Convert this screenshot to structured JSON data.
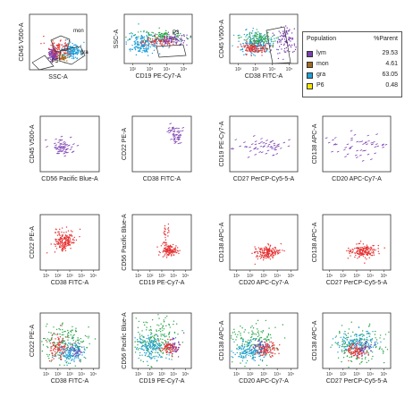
{
  "colors": {
    "lym": "#7a3fb0",
    "mon": "#a36b1f",
    "gra": "#1e9fd8",
    "P6": "#f2e600",
    "red": "#e63232",
    "green": "#2aa84a",
    "axis": "#333333",
    "gate": "#333333"
  },
  "legend": {
    "header_population": "Population",
    "header_parent": "%Parent",
    "rows": [
      {
        "name": "lym",
        "value": "29.53",
        "color": "#7a3fb0"
      },
      {
        "name": "mon",
        "value": "4.61",
        "color": "#a36b1f"
      },
      {
        "name": "gra",
        "value": "63.05",
        "color": "#1e9fd8"
      },
      {
        "name": "P6",
        "value": "0.48",
        "color": "#f2e600"
      }
    ]
  },
  "gate_labels": {
    "mon": "mon",
    "gra": "gra",
    "p5": "P5",
    "p3": "P3"
  },
  "chart_data": [
    {
      "type": "scatter",
      "id": "p1",
      "xlabel": "SSC-A",
      "ylabel": "CD45 V500-A",
      "xticks": [],
      "yticks": [],
      "populations": [
        {
          "color": "lym",
          "cx": 0.42,
          "cy": 0.72,
          "sx": 0.04,
          "sy": 0.06,
          "n": 140
        },
        {
          "color": "mon",
          "cx": 0.58,
          "cy": 0.78,
          "sx": 0.05,
          "sy": 0.04,
          "n": 60
        },
        {
          "color": "gra",
          "cx": 0.75,
          "cy": 0.66,
          "sx": 0.09,
          "sy": 0.06,
          "n": 160
        },
        {
          "color": "red",
          "cx": 0.52,
          "cy": 0.6,
          "sx": 0.12,
          "sy": 0.08,
          "n": 90
        }
      ]
    },
    {
      "type": "scatter",
      "id": "p2",
      "xlabel": "CD19 PE-Cy7-A",
      "ylabel": "SSC-A",
      "xticks": [
        "10²",
        "10³",
        "10⁴",
        "10⁵"
      ],
      "yticks": [],
      "populations": [
        {
          "color": "gra",
          "cx": 0.28,
          "cy": 0.6,
          "sx": 0.12,
          "sy": 0.1,
          "n": 200
        },
        {
          "color": "green",
          "cx": 0.55,
          "cy": 0.45,
          "sx": 0.18,
          "sy": 0.06,
          "n": 120
        },
        {
          "color": "red",
          "cx": 0.5,
          "cy": 0.55,
          "sx": 0.12,
          "sy": 0.05,
          "n": 80
        },
        {
          "color": "lym",
          "cx": 0.72,
          "cy": 0.5,
          "sx": 0.12,
          "sy": 0.06,
          "n": 90
        }
      ]
    },
    {
      "type": "scatter",
      "id": "p3",
      "xlabel": "CD38 FITC-A",
      "ylabel": "CD45 V500-A",
      "xticks": [
        "10²",
        "10³",
        "10⁴",
        "10⁵"
      ],
      "yticks": [],
      "populations": [
        {
          "color": "gra",
          "cx": 0.4,
          "cy": 0.6,
          "sx": 0.12,
          "sy": 0.1,
          "n": 200
        },
        {
          "color": "red",
          "cx": 0.36,
          "cy": 0.68,
          "sx": 0.1,
          "sy": 0.06,
          "n": 130
        },
        {
          "color": "green",
          "cx": 0.44,
          "cy": 0.48,
          "sx": 0.12,
          "sy": 0.08,
          "n": 100
        },
        {
          "color": "lym",
          "cx": 0.82,
          "cy": 0.55,
          "sx": 0.07,
          "sy": 0.14,
          "n": 90
        }
      ]
    },
    {
      "type": "scatter",
      "id": "p4",
      "xlabel": "CD56 Pacific Blue-A",
      "ylabel": "CD45 V500-A",
      "xticks": [],
      "yticks": [],
      "populations": [
        {
          "color": "lym",
          "cx": 0.35,
          "cy": 0.55,
          "sx": 0.1,
          "sy": 0.08,
          "n": 60
        }
      ]
    },
    {
      "type": "scatter",
      "id": "p5",
      "xlabel": "CD38 FITC-A",
      "ylabel": "CD22 PE-A",
      "xticks": [],
      "yticks": [],
      "populations": [
        {
          "color": "lym",
          "cx": 0.72,
          "cy": 0.3,
          "sx": 0.05,
          "sy": 0.09,
          "n": 45
        }
      ]
    },
    {
      "type": "scatter",
      "id": "p6",
      "xlabel": "CD27 PerCP-Cy5-5-A",
      "ylabel": "CD19 PE-Cy7-A",
      "xticks": [],
      "yticks": [],
      "populations": [
        {
          "color": "lym",
          "cx": 0.5,
          "cy": 0.55,
          "sx": 0.25,
          "sy": 0.09,
          "n": 60
        }
      ]
    },
    {
      "type": "scatter",
      "id": "p7",
      "xlabel": "CD20 APC-Cy7-A",
      "ylabel": "CD138 APC-A",
      "xticks": [],
      "yticks": [],
      "populations": [
        {
          "color": "lym",
          "cx": 0.5,
          "cy": 0.55,
          "sx": 0.22,
          "sy": 0.12,
          "n": 55
        }
      ]
    },
    {
      "type": "scatter",
      "id": "p8",
      "xlabel": "CD38 FITC-A",
      "ylabel": "CD22 PE-A",
      "xticks": [
        "10¹",
        "10²",
        "10³",
        "10⁴",
        "10⁵"
      ],
      "yticks": [],
      "populations": [
        {
          "color": "red",
          "cx": 0.42,
          "cy": 0.48,
          "sx": 0.09,
          "sy": 0.1,
          "n": 180
        }
      ]
    },
    {
      "type": "scatter",
      "id": "p9",
      "xlabel": "CD19 PE-Cy7-A",
      "ylabel": "CD56 Pacific Blue-A",
      "xticks": [
        "10¹",
        "10²",
        "10³",
        "10⁴",
        "10⁵"
      ],
      "yticks": [],
      "populations": [
        {
          "color": "red",
          "cx": 0.62,
          "cy": 0.65,
          "sx": 0.07,
          "sy": 0.05,
          "n": 130
        },
        {
          "color": "red",
          "cx": 0.58,
          "cy": 0.35,
          "sx": 0.03,
          "sy": 0.12,
          "n": 25
        }
      ]
    },
    {
      "type": "scatter",
      "id": "p10",
      "xlabel": "CD20 APC-Cy7-A",
      "ylabel": "CD138 APC-A",
      "xticks": [
        "10¹",
        "10²",
        "10³",
        "10⁴",
        "10⁵"
      ],
      "yticks": [],
      "populations": [
        {
          "color": "red",
          "cx": 0.55,
          "cy": 0.68,
          "sx": 0.09,
          "sy": 0.06,
          "n": 170
        }
      ]
    },
    {
      "type": "scatter",
      "id": "p11",
      "xlabel": "CD27 PerCP-Cy5-5-A",
      "ylabel": "CD138 APC-A",
      "xticks": [
        "10¹",
        "10²",
        "10³",
        "10⁴",
        "10⁵"
      ],
      "yticks": [],
      "populations": [
        {
          "color": "red",
          "cx": 0.58,
          "cy": 0.66,
          "sx": 0.1,
          "sy": 0.06,
          "n": 170
        }
      ]
    },
    {
      "type": "scatter",
      "id": "p12",
      "xlabel": "CD38 FITC-A",
      "ylabel": "CD22 PE-A",
      "xticks": [
        "10¹",
        "10²",
        "10³",
        "10⁴",
        "10⁵"
      ],
      "yticks": [],
      "populations": [
        {
          "color": "green",
          "cx": 0.45,
          "cy": 0.55,
          "sx": 0.22,
          "sy": 0.18,
          "n": 170
        },
        {
          "color": "gra",
          "cx": 0.5,
          "cy": 0.72,
          "sx": 0.1,
          "sy": 0.09,
          "n": 150
        },
        {
          "color": "red",
          "cx": 0.3,
          "cy": 0.6,
          "sx": 0.07,
          "sy": 0.12,
          "n": 90
        },
        {
          "color": "lym",
          "cx": 0.62,
          "cy": 0.7,
          "sx": 0.06,
          "sy": 0.06,
          "n": 35
        }
      ]
    },
    {
      "type": "scatter",
      "id": "p13",
      "xlabel": "CD19 PE-Cy7-A",
      "ylabel": "CD56 Pacific Blue-A",
      "xticks": [
        "10¹",
        "10²",
        "10³",
        "10⁴",
        "10⁵"
      ],
      "yticks": [],
      "populations": [
        {
          "color": "green",
          "cx": 0.4,
          "cy": 0.45,
          "sx": 0.2,
          "sy": 0.2,
          "n": 190
        },
        {
          "color": "gra",
          "cx": 0.32,
          "cy": 0.62,
          "sx": 0.13,
          "sy": 0.1,
          "n": 150
        },
        {
          "color": "red",
          "cx": 0.62,
          "cy": 0.62,
          "sx": 0.07,
          "sy": 0.06,
          "n": 90
        },
        {
          "color": "lym",
          "cx": 0.72,
          "cy": 0.6,
          "sx": 0.06,
          "sy": 0.08,
          "n": 35
        }
      ]
    },
    {
      "type": "scatter",
      "id": "p14",
      "xlabel": "CD20 APC-Cy7-A",
      "ylabel": "CD138 APC-A",
      "xticks": [
        "10¹",
        "10²",
        "10³",
        "10⁴",
        "10⁵"
      ],
      "yticks": [],
      "populations": [
        {
          "color": "green",
          "cx": 0.35,
          "cy": 0.5,
          "sx": 0.18,
          "sy": 0.2,
          "n": 160
        },
        {
          "color": "gra",
          "cx": 0.3,
          "cy": 0.68,
          "sx": 0.12,
          "sy": 0.09,
          "n": 150
        },
        {
          "color": "red",
          "cx": 0.55,
          "cy": 0.66,
          "sx": 0.08,
          "sy": 0.06,
          "n": 100
        },
        {
          "color": "lym",
          "cx": 0.45,
          "cy": 0.6,
          "sx": 0.06,
          "sy": 0.06,
          "n": 30
        }
      ]
    },
    {
      "type": "scatter",
      "id": "p15",
      "xlabel": "CD27 PerCP-Cy5-5-A",
      "ylabel": "CD138 APC-A",
      "xticks": [
        "10¹",
        "10²",
        "10³",
        "10⁴",
        "10⁵"
      ],
      "yticks": [],
      "populations": [
        {
          "color": "green",
          "cx": 0.55,
          "cy": 0.6,
          "sx": 0.2,
          "sy": 0.16,
          "n": 160
        },
        {
          "color": "gra",
          "cx": 0.5,
          "cy": 0.55,
          "sx": 0.15,
          "sy": 0.1,
          "n": 150
        },
        {
          "color": "red",
          "cx": 0.48,
          "cy": 0.68,
          "sx": 0.08,
          "sy": 0.06,
          "n": 100
        },
        {
          "color": "lym",
          "cx": 0.62,
          "cy": 0.6,
          "sx": 0.07,
          "sy": 0.06,
          "n": 35
        }
      ]
    }
  ]
}
